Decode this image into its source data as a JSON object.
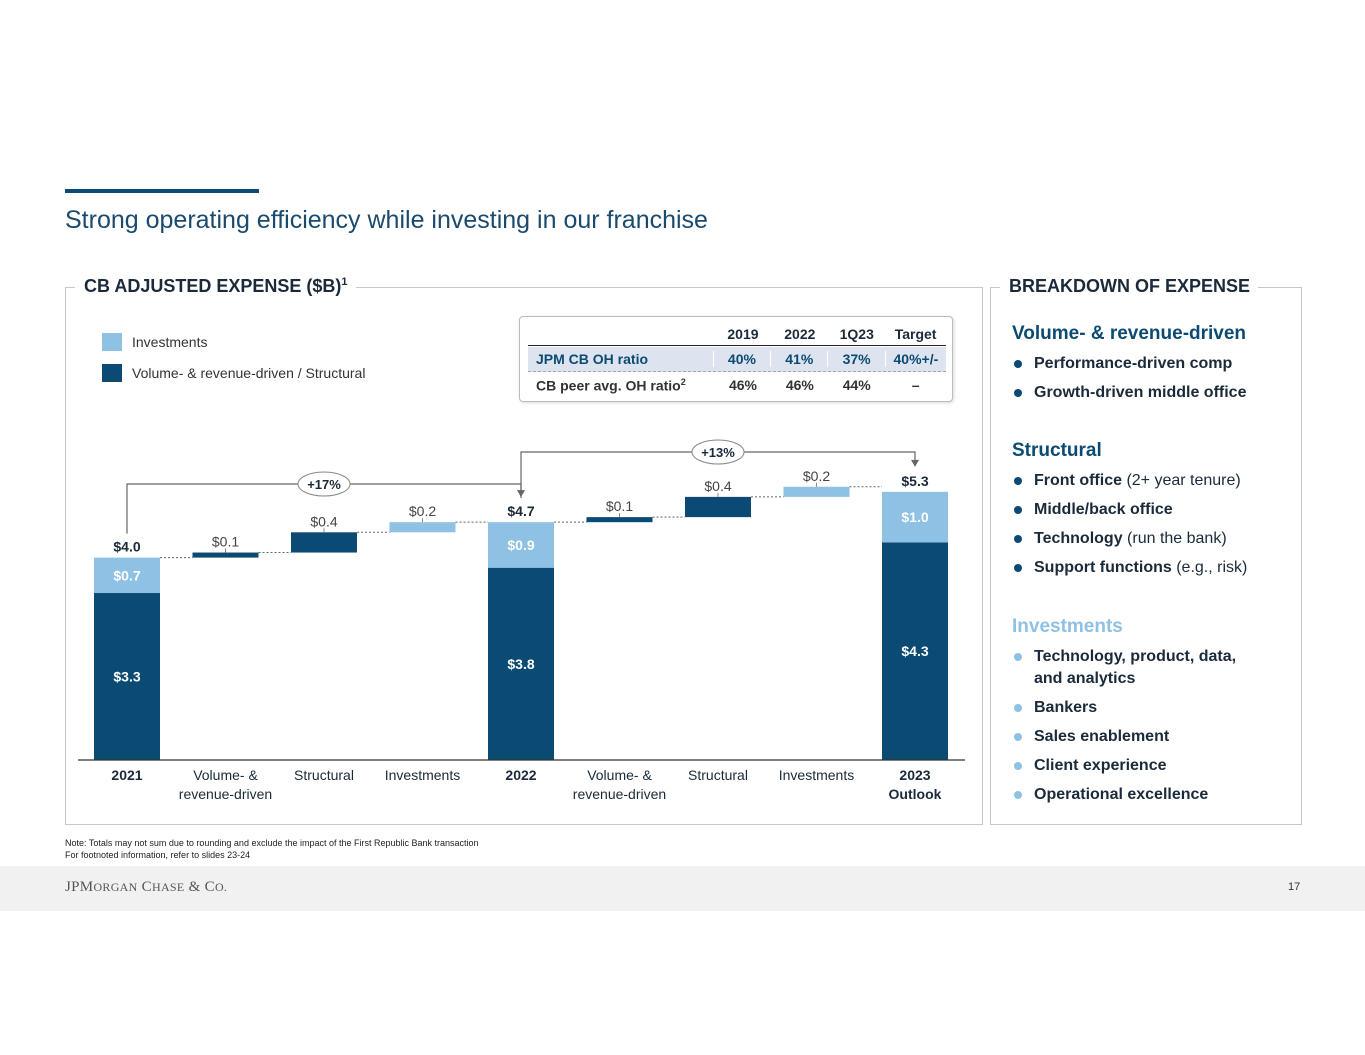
{
  "page": {
    "title": "Strong operating efficiency while investing in our franchise",
    "page_number": "17"
  },
  "left_panel": {
    "heading": "CB ADJUSTED EXPENSE ($B)",
    "heading_sup": "1",
    "legend": [
      {
        "label": "Investments",
        "color": "#8ec1e3"
      },
      {
        "label": "Volume- & revenue-driven / Structural",
        "color": "#0b4a72"
      }
    ]
  },
  "oh_table": {
    "headers": [
      "",
      "2019",
      "2022",
      "1Q23",
      "Target"
    ],
    "rows": [
      {
        "label": "JPM CB OH ratio",
        "sup": "",
        "values": [
          "40%",
          "41%",
          "37%",
          "40%+/-"
        ]
      },
      {
        "label": "CB peer avg. OH ratio",
        "sup": "2",
        "values": [
          "46%",
          "46%",
          "44%",
          "–"
        ]
      }
    ]
  },
  "chart_data": {
    "type": "waterfall",
    "categories": [
      "2021",
      "Volume- & revenue-driven",
      "Structural",
      "Investments",
      "2022",
      "Volume- & revenue-driven",
      "Structural",
      "Investments",
      "2023 Outlook"
    ],
    "category_labels": [
      [
        "2021"
      ],
      [
        "Volume- &",
        "revenue-driven"
      ],
      [
        "Structural"
      ],
      [
        "Investments"
      ],
      [
        "2022"
      ],
      [
        "Volume- &",
        "revenue-driven"
      ],
      [
        "Structural"
      ],
      [
        "Investments"
      ],
      [
        "2023",
        "Outlook"
      ]
    ],
    "category_bold": [
      true,
      false,
      false,
      false,
      true,
      false,
      false,
      false,
      true
    ],
    "bars": [
      {
        "kind": "total",
        "base": 0,
        "core": 3.3,
        "invest": 0.7,
        "total": 4.0,
        "core_label": "$3.3",
        "invest_label": "$0.7",
        "total_label": "$4.0"
      },
      {
        "kind": "step",
        "base": 4.0,
        "value": 0.1,
        "series": "core",
        "label": "$0.1"
      },
      {
        "kind": "step",
        "base": 4.1,
        "value": 0.4,
        "series": "core",
        "label": "$0.4"
      },
      {
        "kind": "step",
        "base": 4.5,
        "value": 0.2,
        "series": "invest",
        "label": "$0.2"
      },
      {
        "kind": "total",
        "base": 0,
        "core": 3.8,
        "invest": 0.9,
        "total": 4.7,
        "core_label": "$3.8",
        "invest_label": "$0.9",
        "total_label": "$4.7"
      },
      {
        "kind": "step",
        "base": 4.7,
        "value": 0.1,
        "series": "core",
        "label": "$0.1"
      },
      {
        "kind": "step",
        "base": 4.8,
        "value": 0.4,
        "series": "core",
        "label": "$0.4"
      },
      {
        "kind": "step",
        "base": 5.2,
        "value": 0.2,
        "series": "invest",
        "label": "$0.2"
      },
      {
        "kind": "total",
        "base": 0,
        "core": 4.3,
        "invest": 1.0,
        "total": 5.3,
        "core_label": "$4.3",
        "invest_label": "$1.0",
        "total_label": "$5.3"
      }
    ],
    "growth_callouts": [
      {
        "from": 0,
        "to": 4,
        "label": "+17%"
      },
      {
        "from": 4,
        "to": 8,
        "label": "+13%"
      }
    ],
    "colors": {
      "core": "#0b4a72",
      "invest": "#8ec1e3"
    },
    "ylim": [
      0,
      5.3
    ]
  },
  "right_panel": {
    "heading": "BREAKDOWN OF EXPENSE",
    "sections": [
      {
        "title": "Volume- & revenue-driven",
        "color": "#0b4a72",
        "items": [
          {
            "bold": "Performance-driven comp",
            "rest": ""
          },
          {
            "bold": "Growth-driven middle office",
            "rest": ""
          }
        ]
      },
      {
        "title": "Structural",
        "color": "#0b4a72",
        "items": [
          {
            "bold": "Front office",
            "rest": " (2+ year tenure)"
          },
          {
            "bold": "Middle/back office",
            "rest": ""
          },
          {
            "bold": "Technology",
            "rest": " (run the bank)"
          },
          {
            "bold": "Support functions",
            "rest": " (e.g., risk)"
          }
        ]
      },
      {
        "title": "Investments",
        "color": "#8ec1e3",
        "items": [
          {
            "bold": "Technology, product, data,",
            "rest": ""
          },
          {
            "bold": "and analytics",
            "rest": ""
          },
          {
            "bold": "Bankers",
            "rest": ""
          },
          {
            "bold": "Sales enablement",
            "rest": ""
          },
          {
            "bold": "Client experience",
            "rest": ""
          },
          {
            "bold": "Operational excellence",
            "rest": ""
          }
        ]
      }
    ]
  },
  "notes": [
    "Note: Totals may not sum due to rounding and exclude the impact of the First Republic Bank transaction",
    "For footnoted information, refer to slides 23-24"
  ],
  "footer": {
    "logo_text": "JPMorgan Chase & Co."
  }
}
